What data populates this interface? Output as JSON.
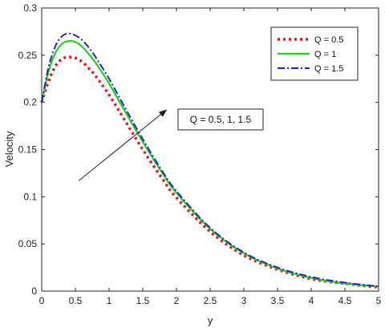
{
  "chart_data": {
    "type": "line",
    "xlabel": "y",
    "ylabel": "Velocity",
    "xlim": [
      0,
      5
    ],
    "ylim": [
      0,
      0.3
    ],
    "xticks": [
      "0",
      "0.5",
      "1",
      "1.5",
      "2",
      "2.5",
      "3",
      "3.5",
      "4",
      "4.5",
      "5"
    ],
    "yticks": [
      "0",
      "0.05",
      "0.1",
      "0.15",
      "0.2",
      "0.25",
      "0.3"
    ],
    "grid": false,
    "legend_position": "top-right",
    "series": [
      {
        "name": "Q = 0.5",
        "color": "#e8141e",
        "style": "dotted",
        "x": [
          0,
          0.1,
          0.2,
          0.3,
          0.4,
          0.5,
          0.6,
          0.7,
          0.8,
          1.0,
          1.2,
          1.5,
          1.8,
          2.0,
          2.5,
          3.0,
          3.5,
          4.0,
          4.5,
          5.0
        ],
        "y": [
          0.2,
          0.222,
          0.238,
          0.246,
          0.248,
          0.247,
          0.243,
          0.236,
          0.228,
          0.208,
          0.185,
          0.15,
          0.118,
          0.099,
          0.063,
          0.038,
          0.023,
          0.013,
          0.008,
          0.004
        ]
      },
      {
        "name": "Q = 1",
        "color": "#22d022",
        "style": "solid",
        "x": [
          0,
          0.1,
          0.2,
          0.3,
          0.4,
          0.5,
          0.6,
          0.7,
          0.8,
          1.0,
          1.2,
          1.5,
          1.8,
          2.0,
          2.5,
          3.0,
          3.5,
          4.0,
          4.5,
          5.0
        ],
        "y": [
          0.2,
          0.232,
          0.252,
          0.262,
          0.265,
          0.264,
          0.259,
          0.251,
          0.242,
          0.22,
          0.195,
          0.158,
          0.124,
          0.104,
          0.066,
          0.04,
          0.024,
          0.014,
          0.008,
          0.005
        ]
      },
      {
        "name": "Q = 1.5",
        "color": "#1a28c8",
        "style": "dashdot",
        "x": [
          0,
          0.1,
          0.2,
          0.3,
          0.4,
          0.5,
          0.6,
          0.7,
          0.8,
          1.0,
          1.2,
          1.5,
          1.8,
          2.0,
          2.5,
          3.0,
          3.5,
          4.0,
          4.5,
          5.0
        ],
        "y": [
          0.2,
          0.237,
          0.259,
          0.27,
          0.273,
          0.271,
          0.266,
          0.258,
          0.248,
          0.225,
          0.199,
          0.161,
          0.126,
          0.106,
          0.067,
          0.041,
          0.025,
          0.015,
          0.009,
          0.005
        ]
      }
    ],
    "annotations": [
      {
        "text": "Q = 0.5, 1, 1.5",
        "type": "arrow-label",
        "from": [
          0.55,
          0.117
        ],
        "to": [
          1.85,
          0.192
        ]
      }
    ]
  }
}
